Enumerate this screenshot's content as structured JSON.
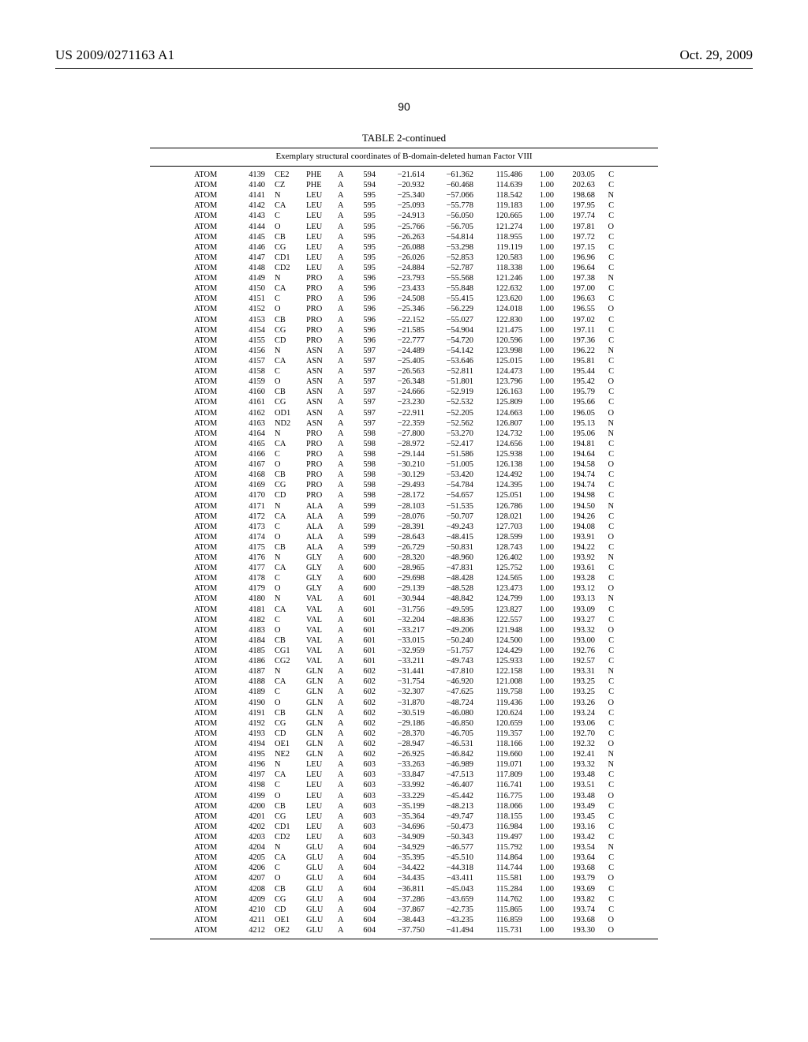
{
  "header": {
    "publication_number": "US 2009/0271163 A1",
    "publication_date": "Oct. 29, 2009"
  },
  "page_number": "90",
  "table": {
    "caption": "TABLE 2-continued",
    "subcaption": "Exemplary structural coordinates of B-domain-deleted human Factor VIII",
    "type": "table",
    "background_color": "#ffffff",
    "text_color": "#000000",
    "rule_color": "#000000",
    "font_family": "Times New Roman",
    "body_fontsize": 10.4,
    "caption_fontsize": 13,
    "subcaption_fontsize": 11,
    "columns": [
      {
        "key": "record",
        "align": "left"
      },
      {
        "key": "serial",
        "align": "right"
      },
      {
        "key": "atom",
        "align": "left"
      },
      {
        "key": "res",
        "align": "left"
      },
      {
        "key": "chain",
        "align": "left"
      },
      {
        "key": "seq",
        "align": "right"
      },
      {
        "key": "x",
        "align": "right"
      },
      {
        "key": "y",
        "align": "right"
      },
      {
        "key": "z",
        "align": "right"
      },
      {
        "key": "occ",
        "align": "right"
      },
      {
        "key": "temp",
        "align": "right"
      },
      {
        "key": "elem",
        "align": "right"
      }
    ],
    "rows": [
      [
        "ATOM",
        "4139",
        "CE2",
        "PHE",
        "A",
        "594",
        "−21.614",
        "−61.362",
        "115.486",
        "1.00",
        "203.05",
        "C"
      ],
      [
        "ATOM",
        "4140",
        "CZ",
        "PHE",
        "A",
        "594",
        "−20.932",
        "−60.468",
        "114.639",
        "1.00",
        "202.63",
        "C"
      ],
      [
        "ATOM",
        "4141",
        "N",
        "LEU",
        "A",
        "595",
        "−25.340",
        "−57.066",
        "118.542",
        "1.00",
        "198.68",
        "N"
      ],
      [
        "ATOM",
        "4142",
        "CA",
        "LEU",
        "A",
        "595",
        "−25.093",
        "−55.778",
        "119.183",
        "1.00",
        "197.95",
        "C"
      ],
      [
        "ATOM",
        "4143",
        "C",
        "LEU",
        "A",
        "595",
        "−24.913",
        "−56.050",
        "120.665",
        "1.00",
        "197.74",
        "C"
      ],
      [
        "ATOM",
        "4144",
        "O",
        "LEU",
        "A",
        "595",
        "−25.766",
        "−56.705",
        "121.274",
        "1.00",
        "197.81",
        "O"
      ],
      [
        "ATOM",
        "4145",
        "CB",
        "LEU",
        "A",
        "595",
        "−26.263",
        "−54.814",
        "118.955",
        "1.00",
        "197.72",
        "C"
      ],
      [
        "ATOM",
        "4146",
        "CG",
        "LEU",
        "A",
        "595",
        "−26.088",
        "−53.298",
        "119.119",
        "1.00",
        "197.15",
        "C"
      ],
      [
        "ATOM",
        "4147",
        "CD1",
        "LEU",
        "A",
        "595",
        "−26.026",
        "−52.853",
        "120.583",
        "1.00",
        "196.96",
        "C"
      ],
      [
        "ATOM",
        "4148",
        "CD2",
        "LEU",
        "A",
        "595",
        "−24.884",
        "−52.787",
        "118.338",
        "1.00",
        "196.64",
        "C"
      ],
      [
        "ATOM",
        "4149",
        "N",
        "PRO",
        "A",
        "596",
        "−23.793",
        "−55.568",
        "121.246",
        "1.00",
        "197.38",
        "N"
      ],
      [
        "ATOM",
        "4150",
        "CA",
        "PRO",
        "A",
        "596",
        "−23.433",
        "−55.848",
        "122.632",
        "1.00",
        "197.00",
        "C"
      ],
      [
        "ATOM",
        "4151",
        "C",
        "PRO",
        "A",
        "596",
        "−24.508",
        "−55.415",
        "123.620",
        "1.00",
        "196.63",
        "C"
      ],
      [
        "ATOM",
        "4152",
        "O",
        "PRO",
        "A",
        "596",
        "−25.346",
        "−56.229",
        "124.018",
        "1.00",
        "196.55",
        "O"
      ],
      [
        "ATOM",
        "4153",
        "CB",
        "PRO",
        "A",
        "596",
        "−22.152",
        "−55.027",
        "122.830",
        "1.00",
        "197.02",
        "C"
      ],
      [
        "ATOM",
        "4154",
        "CG",
        "PRO",
        "A",
        "596",
        "−21.585",
        "−54.904",
        "121.475",
        "1.00",
        "197.11",
        "C"
      ],
      [
        "ATOM",
        "4155",
        "CD",
        "PRO",
        "A",
        "596",
        "−22.777",
        "−54.720",
        "120.596",
        "1.00",
        "197.36",
        "C"
      ],
      [
        "ATOM",
        "4156",
        "N",
        "ASN",
        "A",
        "597",
        "−24.489",
        "−54.142",
        "123.998",
        "1.00",
        "196.22",
        "N"
      ],
      [
        "ATOM",
        "4157",
        "CA",
        "ASN",
        "A",
        "597",
        "−25.405",
        "−53.646",
        "125.015",
        "1.00",
        "195.81",
        "C"
      ],
      [
        "ATOM",
        "4158",
        "C",
        "ASN",
        "A",
        "597",
        "−26.563",
        "−52.811",
        "124.473",
        "1.00",
        "195.44",
        "C"
      ],
      [
        "ATOM",
        "4159",
        "O",
        "ASN",
        "A",
        "597",
        "−26.348",
        "−51.801",
        "123.796",
        "1.00",
        "195.42",
        "O"
      ],
      [
        "ATOM",
        "4160",
        "CB",
        "ASN",
        "A",
        "597",
        "−24.666",
        "−52.919",
        "126.163",
        "1.00",
        "195.79",
        "C"
      ],
      [
        "ATOM",
        "4161",
        "CG",
        "ASN",
        "A",
        "597",
        "−23.230",
        "−52.532",
        "125.809",
        "1.00",
        "195.66",
        "C"
      ],
      [
        "ATOM",
        "4162",
        "OD1",
        "ASN",
        "A",
        "597",
        "−22.911",
        "−52.205",
        "124.663",
        "1.00",
        "196.05",
        "O"
      ],
      [
        "ATOM",
        "4163",
        "ND2",
        "ASN",
        "A",
        "597",
        "−22.359",
        "−52.562",
        "126.807",
        "1.00",
        "195.13",
        "N"
      ],
      [
        "ATOM",
        "4164",
        "N",
        "PRO",
        "A",
        "598",
        "−27.800",
        "−53.270",
        "124.732",
        "1.00",
        "195.06",
        "N"
      ],
      [
        "ATOM",
        "4165",
        "CA",
        "PRO",
        "A",
        "598",
        "−28.972",
        "−52.417",
        "124.656",
        "1.00",
        "194.81",
        "C"
      ],
      [
        "ATOM",
        "4166",
        "C",
        "PRO",
        "A",
        "598",
        "−29.144",
        "−51.586",
        "125.938",
        "1.00",
        "194.64",
        "C"
      ],
      [
        "ATOM",
        "4167",
        "O",
        "PRO",
        "A",
        "598",
        "−30.210",
        "−51.005",
        "126.138",
        "1.00",
        "194.58",
        "O"
      ],
      [
        "ATOM",
        "4168",
        "CB",
        "PRO",
        "A",
        "598",
        "−30.129",
        "−53.420",
        "124.492",
        "1.00",
        "194.74",
        "C"
      ],
      [
        "ATOM",
        "4169",
        "CG",
        "PRO",
        "A",
        "598",
        "−29.493",
        "−54.784",
        "124.395",
        "1.00",
        "194.74",
        "C"
      ],
      [
        "ATOM",
        "4170",
        "CD",
        "PRO",
        "A",
        "598",
        "−28.172",
        "−54.657",
        "125.051",
        "1.00",
        "194.98",
        "C"
      ],
      [
        "ATOM",
        "4171",
        "N",
        "ALA",
        "A",
        "599",
        "−28.103",
        "−51.535",
        "126.786",
        "1.00",
        "194.50",
        "N"
      ],
      [
        "ATOM",
        "4172",
        "CA",
        "ALA",
        "A",
        "599",
        "−28.076",
        "−50.707",
        "128.021",
        "1.00",
        "194.26",
        "C"
      ],
      [
        "ATOM",
        "4173",
        "C",
        "ALA",
        "A",
        "599",
        "−28.391",
        "−49.243",
        "127.703",
        "1.00",
        "194.08",
        "C"
      ],
      [
        "ATOM",
        "4174",
        "O",
        "ALA",
        "A",
        "599",
        "−28.643",
        "−48.415",
        "128.599",
        "1.00",
        "193.91",
        "O"
      ],
      [
        "ATOM",
        "4175",
        "CB",
        "ALA",
        "A",
        "599",
        "−26.729",
        "−50.831",
        "128.743",
        "1.00",
        "194.22",
        "C"
      ],
      [
        "ATOM",
        "4176",
        "N",
        "GLY",
        "A",
        "600",
        "−28.320",
        "−48.960",
        "126.402",
        "1.00",
        "193.92",
        "N"
      ],
      [
        "ATOM",
        "4177",
        "CA",
        "GLY",
        "A",
        "600",
        "−28.965",
        "−47.831",
        "125.752",
        "1.00",
        "193.61",
        "C"
      ],
      [
        "ATOM",
        "4178",
        "C",
        "GLY",
        "A",
        "600",
        "−29.698",
        "−48.428",
        "124.565",
        "1.00",
        "193.28",
        "C"
      ],
      [
        "ATOM",
        "4179",
        "O",
        "GLY",
        "A",
        "600",
        "−29.139",
        "−48.528",
        "123.473",
        "1.00",
        "193.12",
        "O"
      ],
      [
        "ATOM",
        "4180",
        "N",
        "VAL",
        "A",
        "601",
        "−30.944",
        "−48.842",
        "124.799",
        "1.00",
        "193.13",
        "N"
      ],
      [
        "ATOM",
        "4181",
        "CA",
        "VAL",
        "A",
        "601",
        "−31.756",
        "−49.595",
        "123.827",
        "1.00",
        "193.09",
        "C"
      ],
      [
        "ATOM",
        "4182",
        "C",
        "VAL",
        "A",
        "601",
        "−32.204",
        "−48.836",
        "122.557",
        "1.00",
        "193.27",
        "C"
      ],
      [
        "ATOM",
        "4183",
        "O",
        "VAL",
        "A",
        "601",
        "−33.217",
        "−49.206",
        "121.948",
        "1.00",
        "193.32",
        "O"
      ],
      [
        "ATOM",
        "4184",
        "CB",
        "VAL",
        "A",
        "601",
        "−33.015",
        "−50.240",
        "124.500",
        "1.00",
        "193.00",
        "C"
      ],
      [
        "ATOM",
        "4185",
        "CG1",
        "VAL",
        "A",
        "601",
        "−32.959",
        "−51.757",
        "124.429",
        "1.00",
        "192.76",
        "C"
      ],
      [
        "ATOM",
        "4186",
        "CG2",
        "VAL",
        "A",
        "601",
        "−33.211",
        "−49.743",
        "125.933",
        "1.00",
        "192.57",
        "C"
      ],
      [
        "ATOM",
        "4187",
        "N",
        "GLN",
        "A",
        "602",
        "−31.441",
        "−47.810",
        "122.158",
        "1.00",
        "193.31",
        "N"
      ],
      [
        "ATOM",
        "4188",
        "CA",
        "GLN",
        "A",
        "602",
        "−31.754",
        "−46.920",
        "121.008",
        "1.00",
        "193.25",
        "C"
      ],
      [
        "ATOM",
        "4189",
        "C",
        "GLN",
        "A",
        "602",
        "−32.307",
        "−47.625",
        "119.758",
        "1.00",
        "193.25",
        "C"
      ],
      [
        "ATOM",
        "4190",
        "O",
        "GLN",
        "A",
        "602",
        "−31.870",
        "−48.724",
        "119.436",
        "1.00",
        "193.26",
        "O"
      ],
      [
        "ATOM",
        "4191",
        "CB",
        "GLN",
        "A",
        "602",
        "−30.519",
        "−46.080",
        "120.624",
        "1.00",
        "193.24",
        "C"
      ],
      [
        "ATOM",
        "4192",
        "CG",
        "GLN",
        "A",
        "602",
        "−29.186",
        "−46.850",
        "120.659",
        "1.00",
        "193.06",
        "C"
      ],
      [
        "ATOM",
        "4193",
        "CD",
        "GLN",
        "A",
        "602",
        "−28.370",
        "−46.705",
        "119.357",
        "1.00",
        "192.70",
        "C"
      ],
      [
        "ATOM",
        "4194",
        "OE1",
        "GLN",
        "A",
        "602",
        "−28.947",
        "−46.531",
        "118.166",
        "1.00",
        "192.32",
        "O"
      ],
      [
        "ATOM",
        "4195",
        "NE2",
        "GLN",
        "A",
        "602",
        "−26.925",
        "−46.842",
        "119.660",
        "1.00",
        "192.41",
        "N"
      ],
      [
        "ATOM",
        "4196",
        "N",
        "LEU",
        "A",
        "603",
        "−33.263",
        "−46.989",
        "119.071",
        "1.00",
        "193.32",
        "N"
      ],
      [
        "ATOM",
        "4197",
        "CA",
        "LEU",
        "A",
        "603",
        "−33.847",
        "−47.513",
        "117.809",
        "1.00",
        "193.48",
        "C"
      ],
      [
        "ATOM",
        "4198",
        "C",
        "LEU",
        "A",
        "603",
        "−33.992",
        "−46.407",
        "116.741",
        "1.00",
        "193.51",
        "C"
      ],
      [
        "ATOM",
        "4199",
        "O",
        "LEU",
        "A",
        "603",
        "−33.229",
        "−45.442",
        "116.775",
        "1.00",
        "193.48",
        "O"
      ],
      [
        "ATOM",
        "4200",
        "CB",
        "LEU",
        "A",
        "603",
        "−35.199",
        "−48.213",
        "118.066",
        "1.00",
        "193.49",
        "C"
      ],
      [
        "ATOM",
        "4201",
        "CG",
        "LEU",
        "A",
        "603",
        "−35.364",
        "−49.747",
        "118.155",
        "1.00",
        "193.45",
        "C"
      ],
      [
        "ATOM",
        "4202",
        "CD1",
        "LEU",
        "A",
        "603",
        "−34.696",
        "−50.473",
        "116.984",
        "1.00",
        "193.16",
        "C"
      ],
      [
        "ATOM",
        "4203",
        "CD2",
        "LEU",
        "A",
        "603",
        "−34.909",
        "−50.343",
        "119.497",
        "1.00",
        "193.42",
        "C"
      ],
      [
        "ATOM",
        "4204",
        "N",
        "GLU",
        "A",
        "604",
        "−34.929",
        "−46.577",
        "115.792",
        "1.00",
        "193.54",
        "N"
      ],
      [
        "ATOM",
        "4205",
        "CA",
        "GLU",
        "A",
        "604",
        "−35.395",
        "−45.510",
        "114.864",
        "1.00",
        "193.64",
        "C"
      ],
      [
        "ATOM",
        "4206",
        "C",
        "GLU",
        "A",
        "604",
        "−34.422",
        "−44.318",
        "114.744",
        "1.00",
        "193.68",
        "C"
      ],
      [
        "ATOM",
        "4207",
        "O",
        "GLU",
        "A",
        "604",
        "−34.435",
        "−43.411",
        "115.581",
        "1.00",
        "193.79",
        "O"
      ],
      [
        "ATOM",
        "4208",
        "CB",
        "GLU",
        "A",
        "604",
        "−36.811",
        "−45.043",
        "115.284",
        "1.00",
        "193.69",
        "C"
      ],
      [
        "ATOM",
        "4209",
        "CG",
        "GLU",
        "A",
        "604",
        "−37.286",
        "−43.659",
        "114.762",
        "1.00",
        "193.82",
        "C"
      ],
      [
        "ATOM",
        "4210",
        "CD",
        "GLU",
        "A",
        "604",
        "−37.867",
        "−42.735",
        "115.865",
        "1.00",
        "193.74",
        "C"
      ],
      [
        "ATOM",
        "4211",
        "OE1",
        "GLU",
        "A",
        "604",
        "−38.443",
        "−43.235",
        "116.859",
        "1.00",
        "193.68",
        "O"
      ],
      [
        "ATOM",
        "4212",
        "OE2",
        "GLU",
        "A",
        "604",
        "−37.750",
        "−41.494",
        "115.731",
        "1.00",
        "193.30",
        "O"
      ]
    ]
  }
}
